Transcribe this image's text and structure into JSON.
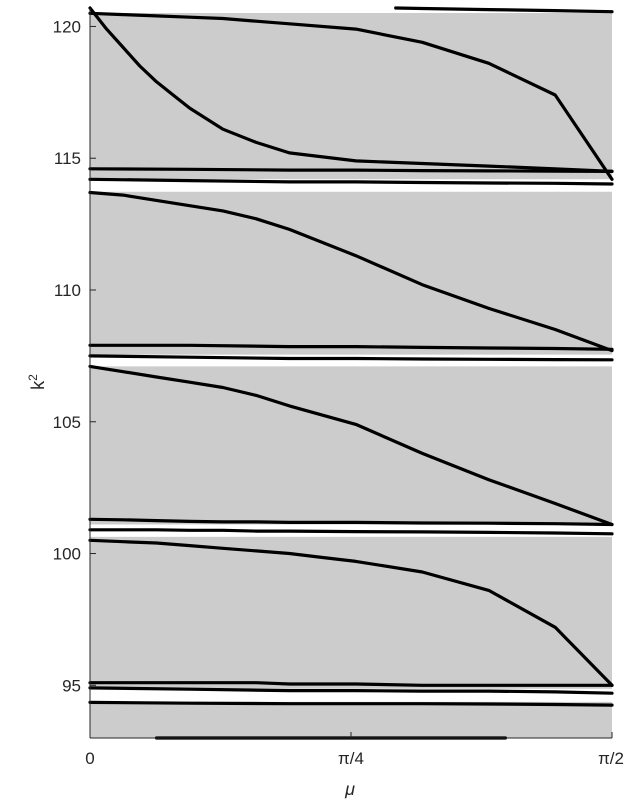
{
  "chart_data": {
    "type": "area",
    "xlabel": "μ",
    "ylabel": "k",
    "ylabel_superscript": "2",
    "xlim": [
      0,
      1.5708
    ],
    "ylim": [
      93,
      120.7
    ],
    "x_ticks": [
      {
        "value": 0,
        "label": "0"
      },
      {
        "value": 0.7854,
        "label": "π/4"
      },
      {
        "value": 1.5708,
        "label": "π/2"
      }
    ],
    "y_ticks": [
      {
        "value": 95,
        "label": "95"
      },
      {
        "value": 100,
        "label": "100"
      },
      {
        "value": 105,
        "label": "105"
      },
      {
        "value": 110,
        "label": "110"
      },
      {
        "value": 115,
        "label": "115"
      },
      {
        "value": 120,
        "label": "120"
      }
    ],
    "grid": false,
    "colors": {
      "band_fill": "#cccccc",
      "curve": "#000000",
      "axis": "#262626",
      "gap": "#ffffff"
    },
    "bands": [
      {
        "k2_at_0": [
          93.0,
          94.37
        ],
        "k2_at_pi_over_2": [
          93.0,
          94.37
        ]
      },
      {
        "k2_at_0": [
          94.87,
          100.63
        ],
        "k2_at_pi_over_2": [
          94.87,
          100.63
        ]
      },
      {
        "k2_at_0": [
          101.1,
          107.1
        ],
        "k2_at_pi_over_2": [
          101.1,
          107.1
        ]
      },
      {
        "k2_at_0": [
          107.55,
          113.73
        ],
        "k2_at_pi_over_2": [
          107.55,
          113.73
        ]
      },
      {
        "k2_at_0": [
          114.2,
          120.51
        ],
        "k2_at_pi_over_2": [
          114.2,
          120.51
        ]
      }
    ],
    "series": [
      {
        "x": [
          0,
          0.3,
          0.6,
          0.8,
          1.0,
          1.2,
          1.4,
          1.5708
        ],
        "y": [
          94.35,
          94.32,
          94.3,
          94.3,
          94.3,
          94.29,
          94.27,
          94.25
        ]
      },
      {
        "x": [
          0.2,
          0.4,
          0.6,
          0.8,
          1.0,
          1.2,
          1.25
        ],
        "y": [
          93.0,
          93.0,
          93.0,
          93.0,
          93.0,
          93.0,
          93.0
        ]
      },
      {
        "x": [
          0,
          0.3,
          0.6,
          0.8,
          1.0,
          1.2,
          1.4,
          1.5708
        ],
        "y": [
          94.9,
          94.85,
          94.8,
          94.8,
          94.78,
          94.78,
          94.75,
          94.7
        ]
      },
      {
        "x": [
          0,
          0.1,
          0.2,
          0.3,
          0.4,
          0.5,
          0.6,
          0.8,
          1.0,
          1.2,
          1.4,
          1.5708
        ],
        "y": [
          95.1,
          95.1,
          95.1,
          95.1,
          95.1,
          95.1,
          95.05,
          95.05,
          95.0,
          95.0,
          95.0,
          95.0
        ]
      },
      {
        "x": [
          0,
          0.1,
          0.2,
          0.3,
          0.4,
          0.5,
          0.6,
          0.7,
          0.8,
          1.0,
          1.2,
          1.4,
          1.5708
        ],
        "y": [
          100.5,
          100.45,
          100.4,
          100.3,
          100.2,
          100.1,
          100.0,
          99.85,
          99.7,
          99.3,
          98.6,
          97.2,
          95.0
        ]
      },
      {
        "x": [
          0,
          0.1,
          0.2,
          0.3,
          0.4,
          0.5,
          0.6,
          0.8,
          1.0,
          1.2,
          1.4,
          1.5708
        ],
        "y": [
          100.9,
          100.9,
          100.9,
          100.88,
          100.88,
          100.85,
          100.85,
          100.83,
          100.82,
          100.8,
          100.78,
          100.75
        ]
      },
      {
        "x": [
          0,
          0.1,
          0.2,
          0.3,
          0.4,
          0.5,
          0.6,
          0.8,
          1.0,
          1.2,
          1.4,
          1.5708
        ],
        "y": [
          101.3,
          101.28,
          101.25,
          101.22,
          101.2,
          101.2,
          101.18,
          101.18,
          101.16,
          101.15,
          101.13,
          101.1
        ]
      },
      {
        "x": [
          0,
          0.1,
          0.2,
          0.3,
          0.4,
          0.5,
          0.6,
          0.8,
          1.0,
          1.2,
          1.4,
          1.5708
        ],
        "y": [
          107.1,
          106.9,
          106.7,
          106.5,
          106.3,
          106.0,
          105.6,
          104.9,
          103.8,
          102.8,
          101.9,
          101.1
        ]
      },
      {
        "x": [
          0,
          0.3,
          0.6,
          0.8,
          1.0,
          1.2,
          1.4,
          1.5708
        ],
        "y": [
          107.5,
          107.45,
          107.4,
          107.4,
          107.38,
          107.37,
          107.36,
          107.35
        ]
      },
      {
        "x": [
          0,
          0.3,
          0.6,
          0.8,
          1.0,
          1.2,
          1.4,
          1.5708
        ],
        "y": [
          107.9,
          107.9,
          107.85,
          107.85,
          107.82,
          107.8,
          107.78,
          107.75
        ]
      },
      {
        "x": [
          0,
          0.1,
          0.2,
          0.3,
          0.4,
          0.5,
          0.6,
          0.8,
          1.0,
          1.2,
          1.4,
          1.5708
        ],
        "y": [
          113.7,
          113.6,
          113.4,
          113.2,
          113.0,
          112.7,
          112.3,
          111.3,
          110.2,
          109.3,
          108.5,
          107.7
        ]
      },
      {
        "x": [
          0,
          0.3,
          0.6,
          0.8,
          1.0,
          1.2,
          1.4,
          1.5708
        ],
        "y": [
          114.2,
          114.15,
          114.1,
          114.1,
          114.08,
          114.06,
          114.05,
          114.02
        ]
      },
      {
        "x": [
          0,
          0.3,
          0.6,
          0.8,
          1.0,
          1.2,
          1.4,
          1.5708
        ],
        "y": [
          114.6,
          114.58,
          114.55,
          114.55,
          114.53,
          114.52,
          114.51,
          114.5
        ]
      },
      {
        "x": [
          0,
          0.1,
          0.2,
          0.3,
          0.4,
          0.5,
          0.6,
          0.8,
          1.0,
          1.2,
          1.4,
          1.5708
        ],
        "y": [
          120.5,
          120.45,
          120.4,
          120.35,
          120.3,
          120.2,
          120.1,
          119.9,
          119.4,
          118.6,
          117.4,
          114.2
        ]
      },
      {
        "x": [
          0,
          0.05,
          0.1,
          0.15,
          0.2,
          0.25,
          0.3,
          0.4,
          0.5,
          0.6,
          0.8,
          1.0,
          1.2,
          1.4,
          1.5708
        ],
        "y": [
          120.7,
          119.9,
          119.2,
          118.5,
          117.9,
          117.4,
          116.9,
          116.1,
          115.6,
          115.2,
          114.9,
          114.8,
          114.7,
          114.6,
          114.5
        ]
      },
      {
        "x": [
          0.92,
          1.0,
          1.2,
          1.4,
          1.5708
        ],
        "y": [
          120.7,
          120.68,
          120.64,
          120.6,
          120.56
        ]
      }
    ]
  }
}
